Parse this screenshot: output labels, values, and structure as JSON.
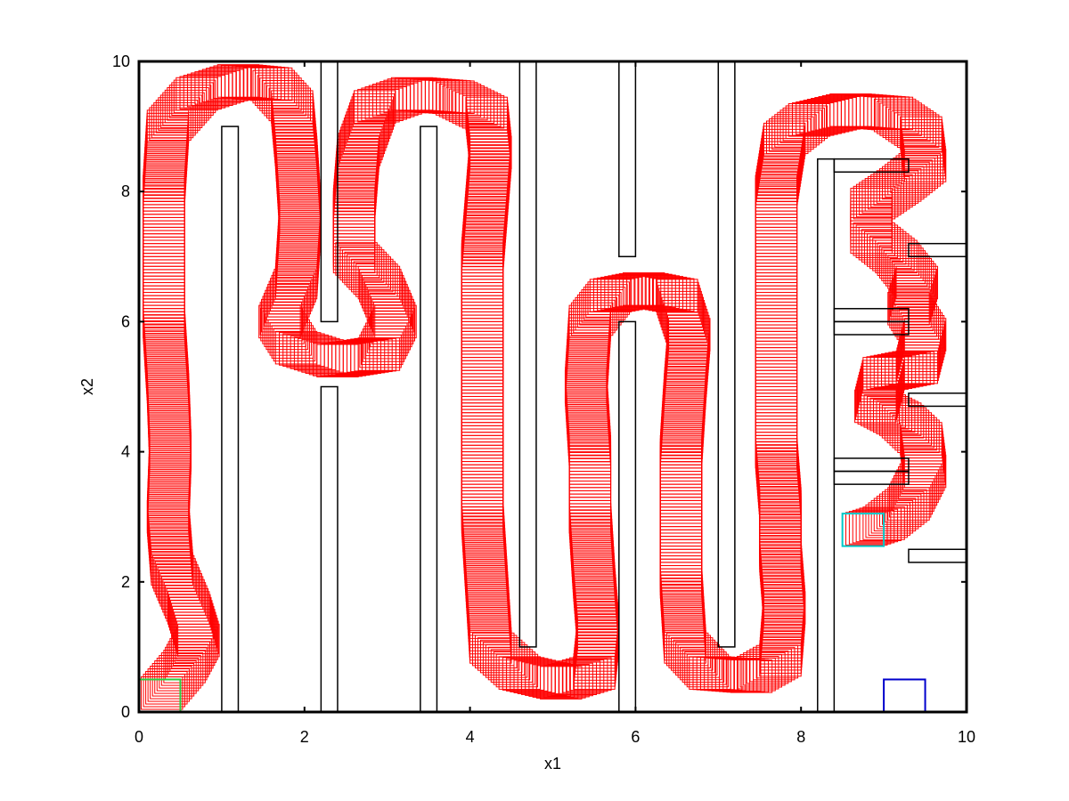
{
  "chart_data": {
    "type": "scatter",
    "title": "",
    "xlabel": "x1",
    "ylabel": "x2",
    "xlim": [
      0,
      10
    ],
    "ylim": [
      0,
      10
    ],
    "xticks": [
      0,
      2,
      4,
      6,
      8,
      10
    ],
    "yticks": [
      0,
      2,
      4,
      6,
      8,
      10
    ],
    "grid": false,
    "colors": {
      "trajectory": "#ff0000",
      "walls": "#000000",
      "start": "#2ecc40",
      "current": "#00c8c8",
      "goal": "#0000cc"
    },
    "walls": [
      {
        "x": 1.0,
        "y": 0,
        "w": 0.2,
        "h": 9
      },
      {
        "x": 2.2,
        "y": 0,
        "w": 0.2,
        "h": 5
      },
      {
        "x": 2.2,
        "y": 6,
        "w": 0.2,
        "h": 4
      },
      {
        "x": 3.4,
        "y": 0,
        "w": 0.2,
        "h": 9
      },
      {
        "x": 4.6,
        "y": 1,
        "w": 0.2,
        "h": 9
      },
      {
        "x": 5.8,
        "y": 0,
        "w": 0.2,
        "h": 6
      },
      {
        "x": 5.8,
        "y": 7,
        "w": 0.2,
        "h": 3
      },
      {
        "x": 7.0,
        "y": 1,
        "w": 0.2,
        "h": 9
      },
      {
        "x": 8.2,
        "y": 0,
        "w": 0.2,
        "h": 8.5
      },
      {
        "x": 8.4,
        "y": 8.3,
        "w": 0.9,
        "h": 0.2
      },
      {
        "x": 8.4,
        "y": 6.0,
        "w": 0.9,
        "h": 0.2
      },
      {
        "x": 8.4,
        "y": 5.8,
        "w": 0.9,
        "h": 0.2
      },
      {
        "x": 8.4,
        "y": 3.7,
        "w": 0.9,
        "h": 0.2
      },
      {
        "x": 8.4,
        "y": 3.5,
        "w": 0.9,
        "h": 0.2
      },
      {
        "x": 9.3,
        "y": 7.0,
        "w": 0.7,
        "h": 0.2
      },
      {
        "x": 9.3,
        "y": 4.7,
        "w": 0.7,
        "h": 0.2
      },
      {
        "x": 9.3,
        "y": 2.3,
        "w": 0.7,
        "h": 0.2
      }
    ],
    "start_box": {
      "x": 0.0,
      "y": 0.0,
      "w": 0.5,
      "h": 0.5
    },
    "current_box": {
      "x": 8.5,
      "y": 2.55,
      "w": 0.5,
      "h": 0.5
    },
    "goal_box": {
      "x": 9.0,
      "y": 0.0,
      "w": 0.5,
      "h": 0.5
    },
    "trajectory": [
      [
        0.25,
        0.25
      ],
      [
        0.55,
        0.7
      ],
      [
        0.72,
        1.1
      ],
      [
        0.6,
        1.6
      ],
      [
        0.4,
        2.2
      ],
      [
        0.35,
        3.0
      ],
      [
        0.38,
        4.0
      ],
      [
        0.35,
        5.0
      ],
      [
        0.3,
        6.0
      ],
      [
        0.3,
        7.0
      ],
      [
        0.3,
        8.0
      ],
      [
        0.35,
        9.0
      ],
      [
        0.7,
        9.5
      ],
      [
        1.2,
        9.7
      ],
      [
        1.6,
        9.65
      ],
      [
        1.85,
        9.3
      ],
      [
        1.9,
        8.6
      ],
      [
        1.95,
        7.6
      ],
      [
        1.9,
        6.6
      ],
      [
        1.7,
        6.0
      ],
      [
        1.9,
        5.6
      ],
      [
        2.4,
        5.4
      ],
      [
        2.9,
        5.5
      ],
      [
        3.1,
        6.0
      ],
      [
        2.9,
        6.6
      ],
      [
        2.6,
        7.0
      ],
      [
        2.6,
        7.8
      ],
      [
        2.65,
        8.6
      ],
      [
        2.85,
        9.3
      ],
      [
        3.3,
        9.5
      ],
      [
        3.8,
        9.45
      ],
      [
        4.2,
        9.2
      ],
      [
        4.25,
        8.6
      ],
      [
        4.2,
        7.8
      ],
      [
        4.15,
        7.0
      ],
      [
        4.15,
        6.0
      ],
      [
        4.15,
        5.0
      ],
      [
        4.15,
        4.0
      ],
      [
        4.15,
        3.0
      ],
      [
        4.2,
        2.0
      ],
      [
        4.25,
        1.0
      ],
      [
        4.6,
        0.6
      ],
      [
        5.1,
        0.45
      ],
      [
        5.5,
        0.6
      ],
      [
        5.55,
        1.2
      ],
      [
        5.5,
        2.0
      ],
      [
        5.45,
        3.0
      ],
      [
        5.45,
        4.0
      ],
      [
        5.4,
        5.0
      ],
      [
        5.45,
        6.0
      ],
      [
        5.7,
        6.4
      ],
      [
        6.1,
        6.5
      ],
      [
        6.5,
        6.4
      ],
      [
        6.65,
        5.8
      ],
      [
        6.6,
        5.0
      ],
      [
        6.55,
        4.0
      ],
      [
        6.55,
        3.0
      ],
      [
        6.55,
        2.0
      ],
      [
        6.6,
        1.0
      ],
      [
        6.9,
        0.6
      ],
      [
        7.4,
        0.55
      ],
      [
        7.75,
        0.8
      ],
      [
        7.8,
        1.6
      ],
      [
        7.75,
        2.4
      ],
      [
        7.75,
        3.2
      ],
      [
        7.7,
        4.0
      ],
      [
        7.7,
        5.0
      ],
      [
        7.7,
        6.0
      ],
      [
        7.7,
        7.0
      ],
      [
        7.7,
        8.0
      ],
      [
        7.8,
        8.8
      ],
      [
        8.1,
        9.1
      ],
      [
        8.6,
        9.25
      ],
      [
        9.1,
        9.2
      ],
      [
        9.45,
        8.9
      ],
      [
        9.5,
        8.4
      ],
      [
        9.2,
        8.1
      ],
      [
        8.85,
        7.8
      ],
      [
        8.85,
        7.3
      ],
      [
        9.15,
        7.0
      ],
      [
        9.4,
        6.6
      ],
      [
        9.3,
        6.2
      ],
      [
        9.5,
        5.8
      ],
      [
        9.4,
        5.3
      ],
      [
        9.0,
        5.2
      ],
      [
        8.9,
        4.7
      ],
      [
        9.2,
        4.5
      ],
      [
        9.45,
        4.2
      ],
      [
        9.5,
        3.7
      ],
      [
        9.3,
        3.2
      ],
      [
        9.0,
        2.9
      ],
      [
        8.75,
        2.8
      ]
    ]
  }
}
